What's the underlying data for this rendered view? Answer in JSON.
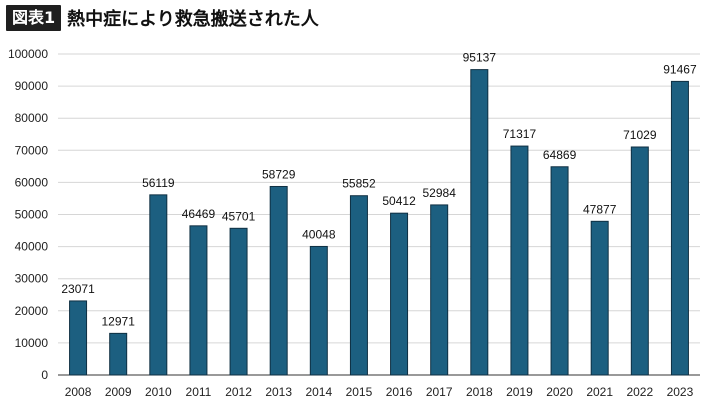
{
  "header": {
    "badge": "図表1",
    "title": "熱中症により救急搬送された人"
  },
  "chart_data": {
    "type": "bar",
    "title": "熱中症により救急搬送された人",
    "xlabel": "",
    "ylabel": "",
    "categories": [
      "2008",
      "2009",
      "2010",
      "2011",
      "2012",
      "2013",
      "2014",
      "2015",
      "2016",
      "2017",
      "2018",
      "2019",
      "2020",
      "2021",
      "2022",
      "2023"
    ],
    "values": [
      23071,
      12971,
      56119,
      46469,
      45701,
      58729,
      40048,
      55852,
      50412,
      52984,
      95137,
      71317,
      64869,
      47877,
      71029,
      91467
    ],
    "ylim": [
      0,
      100000
    ],
    "yticks": [
      0,
      10000,
      20000,
      30000,
      40000,
      50000,
      60000,
      70000,
      80000,
      90000,
      100000
    ],
    "grid": true,
    "bar_color": "#1c5f80",
    "bar_edge": "#0f2f42"
  }
}
